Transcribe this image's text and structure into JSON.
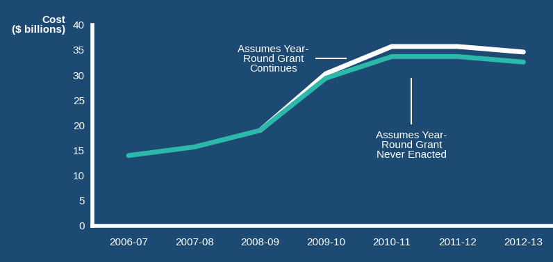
{
  "chart_data": {
    "type": "line",
    "y_label": "Cost\n($ billions)",
    "categories": [
      "2006-07",
      "2007-08",
      "2008-09",
      "2009-10",
      "2010-11",
      "2011-12",
      "2012-13"
    ],
    "series": [
      {
        "name": "Assumes Year-\nRound Grant\nNever Enacted",
        "color": "#2cb9ab",
        "values": [
          14.0,
          15.7,
          19.0,
          29.4,
          33.7,
          33.7,
          32.6
        ]
      },
      {
        "name": "Assumes Year-\nRound Grant\nContinues",
        "color": "#ffffff",
        "values": [
          null,
          null,
          19.0,
          30.3,
          35.7,
          35.7,
          34.6
        ]
      }
    ],
    "ylim": [
      0,
      40
    ],
    "yticks": [
      0,
      5,
      10,
      15,
      20,
      25,
      30,
      35,
      40
    ],
    "grid": false
  }
}
